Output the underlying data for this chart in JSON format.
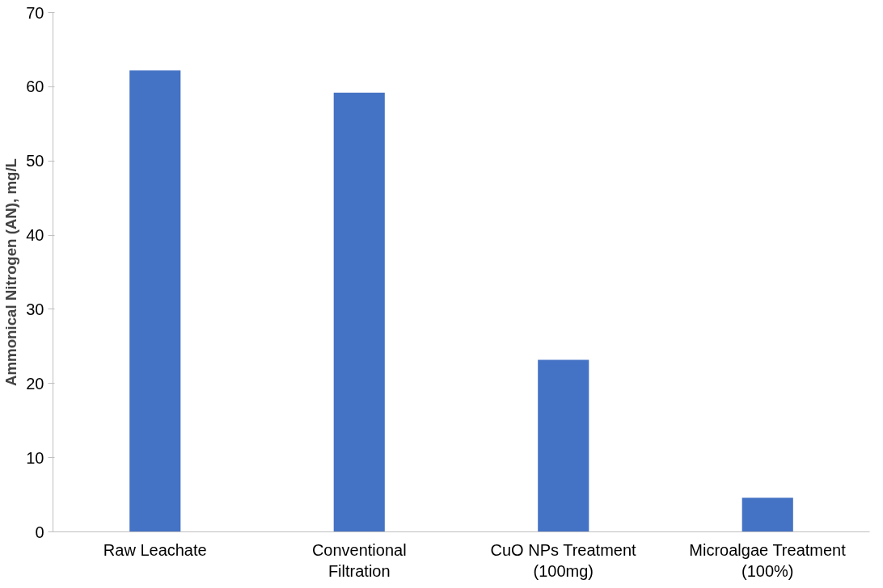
{
  "chart_data": {
    "type": "bar",
    "ylabel": "Ammonical Nitrogen (AN), mg/L",
    "categories": [
      "Raw Leachate",
      "Conventional\nFiltration",
      "CuO NPs Treatment\n(100mg)",
      "Microalgae Treatment\n(100%)"
    ],
    "values": [
      62.2,
      59.2,
      23.2,
      4.6
    ],
    "color": "#4472c4",
    "ylim": [
      0,
      70
    ],
    "yticks": [
      0,
      10,
      20,
      30,
      40,
      50,
      60,
      70
    ],
    "grid": false
  }
}
